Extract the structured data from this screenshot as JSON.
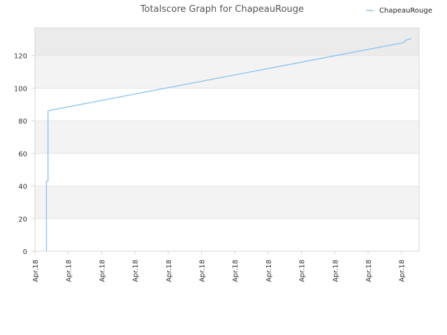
{
  "chart_data": {
    "type": "line",
    "title": "Totalscore Graph for ChapeauRouge",
    "xlabel": "",
    "ylabel": "",
    "ylim": [
      0,
      137
    ],
    "y_ticks": [
      0,
      20,
      40,
      60,
      80,
      100,
      120
    ],
    "x_tick_labels": [
      "Apr.18",
      "Apr.18",
      "Apr.18",
      "Apr.18",
      "Apr.18",
      "Apr.18",
      "Apr.18",
      "Apr.18",
      "Apr.18",
      "Apr.18",
      "Apr.18",
      "Apr.18"
    ],
    "grid": true,
    "legend_position": "top-right",
    "series": [
      {
        "name": "ChapeauRouge",
        "color": "#90c4ec",
        "points": [
          {
            "x": 0.03,
            "y": 0
          },
          {
            "x": 0.03,
            "y": 43
          },
          {
            "x": 0.034,
            "y": 43
          },
          {
            "x": 0.034,
            "y": 86
          },
          {
            "x": 0.04,
            "y": 86.5
          },
          {
            "x": 0.96,
            "y": 128
          },
          {
            "x": 0.965,
            "y": 129.5
          },
          {
            "x": 0.98,
            "y": 130.5
          }
        ]
      }
    ],
    "colors": {
      "band_light": "#f3f3f3",
      "band_top": "#ebebeb",
      "grid": "#e4e4e4",
      "axis": "#d6d6d6"
    }
  }
}
